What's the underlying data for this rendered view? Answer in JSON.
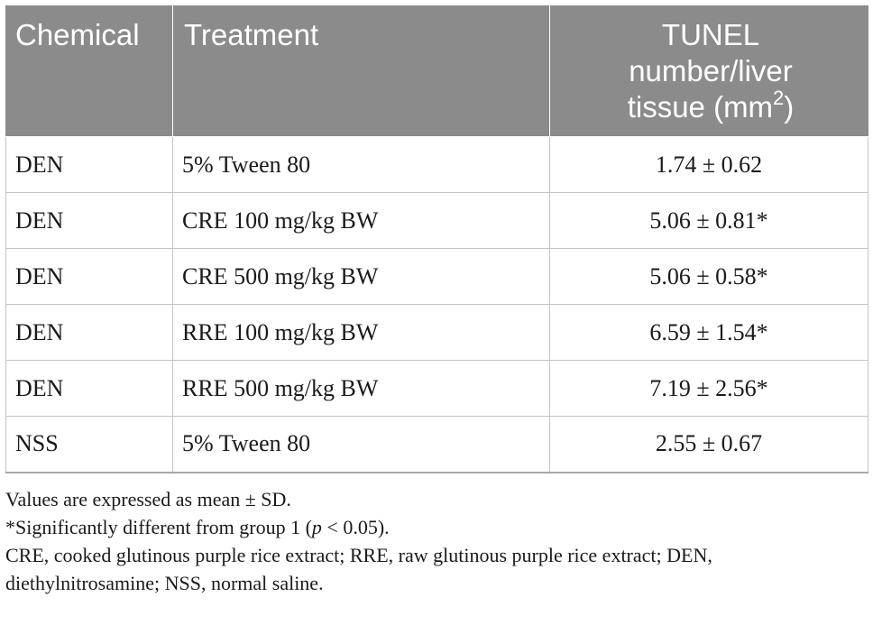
{
  "table": {
    "headers": {
      "chemical": "Chemical",
      "treatment": "Treatment",
      "tunel_line1": "TUNEL",
      "tunel_line2": "number/liver",
      "tunel_line3": "tissue (mm",
      "tunel_sup": "2",
      "tunel_close": ")"
    },
    "rows": [
      {
        "chemical": "DEN",
        "treatment": "5% Tween 80",
        "value": "1.74 ± 0.62"
      },
      {
        "chemical": "DEN",
        "treatment": "CRE 100 mg/kg BW",
        "value": "5.06 ± 0.81*"
      },
      {
        "chemical": "DEN",
        "treatment": "CRE 500 mg/kg BW",
        "value": "5.06 ± 0.58*"
      },
      {
        "chemical": "DEN",
        "treatment": "RRE 100 mg/kg BW",
        "value": "6.59 ± 1.54*"
      },
      {
        "chemical": "DEN",
        "treatment": "RRE 500 mg/kg BW",
        "value": "7.19 ± 2.56*"
      },
      {
        "chemical": "NSS",
        "treatment": "5% Tween 80",
        "value": "2.55 ± 0.67"
      }
    ]
  },
  "notes": {
    "line1": "Values are expressed as mean ± SD.",
    "line2_pre": "*Significantly different from group 1 (",
    "line2_p": "p",
    "line2_post": " < 0.05).",
    "line3": "CRE, cooked glutinous purple rice extract; RRE, raw glutinous purple rice extract; DEN, diethylnitrosamine; NSS, normal saline."
  }
}
